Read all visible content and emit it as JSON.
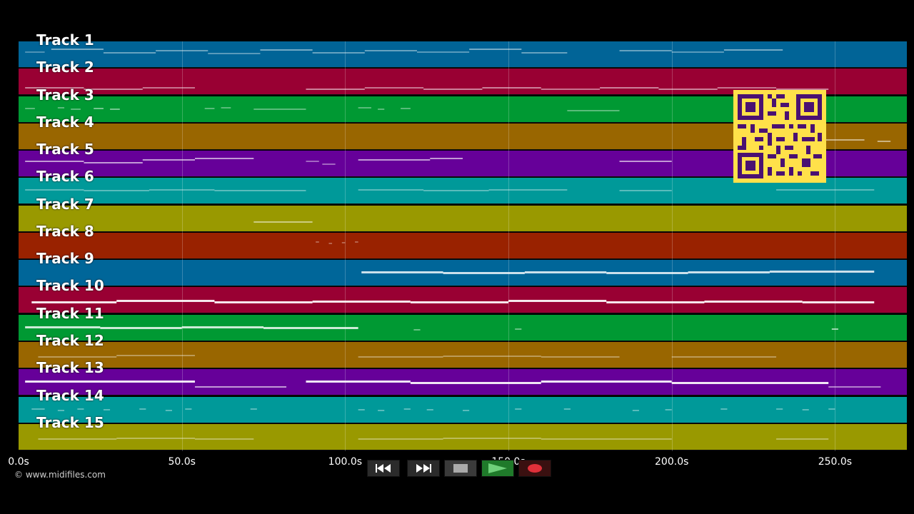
{
  "tracks": [
    {
      "label": "Track 1",
      "color": "#016497",
      "notes": [
        [
          2,
          8,
          14,
          0.3
        ],
        [
          10,
          26,
          10,
          0.45
        ],
        [
          26,
          42,
          15,
          0.4
        ],
        [
          42,
          58,
          12,
          0.4
        ],
        [
          58,
          74,
          16,
          0.35
        ],
        [
          74,
          90,
          11,
          0.45
        ],
        [
          90,
          106,
          15,
          0.4
        ],
        [
          106,
          122,
          12,
          0.4
        ],
        [
          122,
          138,
          14,
          0.35
        ],
        [
          138,
          154,
          10,
          0.45
        ],
        [
          154,
          168,
          15,
          0.4
        ],
        [
          184,
          200,
          12,
          0.4
        ],
        [
          200,
          216,
          14,
          0.35
        ],
        [
          216,
          234,
          11,
          0.45
        ]
      ]
    },
    {
      "label": "Track 2",
      "color": "#990033",
      "notes": [
        [
          2,
          20,
          26,
          0.5
        ],
        [
          20,
          38,
          28,
          0.5
        ],
        [
          38,
          54,
          26,
          0.45
        ],
        [
          88,
          106,
          28,
          0.5
        ],
        [
          106,
          124,
          26,
          0.45
        ],
        [
          124,
          142,
          28,
          0.5
        ],
        [
          142,
          160,
          26,
          0.5
        ],
        [
          160,
          178,
          28,
          0.45
        ],
        [
          178,
          196,
          26,
          0.5
        ],
        [
          196,
          214,
          28,
          0.5
        ],
        [
          214,
          232,
          26,
          0.45
        ],
        [
          232,
          248,
          28,
          0.5
        ]
      ]
    },
    {
      "label": "Track 3",
      "color": "#009933",
      "notes": [
        [
          2,
          5,
          16,
          0.35
        ],
        [
          12,
          14,
          15,
          0.35
        ],
        [
          16,
          19,
          17,
          0.35
        ],
        [
          23,
          26,
          16,
          0.45
        ],
        [
          28,
          31,
          17,
          0.45
        ],
        [
          57,
          60,
          16,
          0.35
        ],
        [
          62,
          65,
          15,
          0.35
        ],
        [
          72,
          88,
          17,
          0.35
        ],
        [
          104,
          108,
          15,
          0.35
        ],
        [
          110,
          112,
          17,
          0.35
        ],
        [
          117,
          120,
          16,
          0.35
        ],
        [
          168,
          184,
          19,
          0.35
        ]
      ]
    },
    {
      "label": "Track 4",
      "color": "#996600",
      "notes": [
        [
          247,
          259,
          22,
          0.5
        ],
        [
          263,
          267,
          24,
          0.5
        ]
      ]
    },
    {
      "label": "Track 5",
      "color": "#660099",
      "notes": [
        [
          2,
          20,
          14,
          0.6
        ],
        [
          20,
          38,
          16,
          0.6
        ],
        [
          38,
          54,
          12,
          0.6
        ],
        [
          54,
          72,
          10,
          0.6
        ],
        [
          88,
          92,
          14,
          0.4
        ],
        [
          93,
          97,
          18,
          0.4
        ],
        [
          104,
          126,
          12,
          0.6
        ],
        [
          126,
          136,
          10,
          0.6
        ],
        [
          184,
          200,
          14,
          0.6
        ]
      ]
    },
    {
      "label": "Track 6",
      "color": "#009999",
      "notes": [
        [
          2,
          20,
          16,
          0.35
        ],
        [
          20,
          40,
          17,
          0.35
        ],
        [
          40,
          60,
          16,
          0.35
        ],
        [
          60,
          88,
          17,
          0.35
        ],
        [
          104,
          124,
          16,
          0.35
        ],
        [
          124,
          144,
          17,
          0.35
        ],
        [
          144,
          168,
          16,
          0.35
        ],
        [
          184,
          200,
          17,
          0.35
        ],
        [
          232,
          262,
          16,
          0.35
        ]
      ]
    },
    {
      "label": "Track 7",
      "color": "#999900",
      "notes": [
        [
          72,
          90,
          22,
          0.5
        ]
      ]
    },
    {
      "label": "Track 8",
      "color": "#992200",
      "notes": [
        [
          91,
          92,
          12,
          0.3
        ],
        [
          95,
          96,
          14,
          0.3
        ],
        [
          99,
          100,
          13,
          0.3
        ],
        [
          103,
          104,
          12,
          0.3
        ]
      ]
    },
    {
      "label": "Track 9",
      "color": "#006699",
      "notes": [
        [
          105,
          130,
          16,
          0.8
        ],
        [
          130,
          155,
          17,
          0.8
        ],
        [
          155,
          180,
          16,
          0.8
        ],
        [
          180,
          205,
          17,
          0.8
        ],
        [
          205,
          230,
          16,
          0.8
        ],
        [
          230,
          262,
          15,
          0.8
        ]
      ]
    },
    {
      "label": "Track 10",
      "color": "#990033",
      "notes": [
        [
          4,
          30,
          20,
          0.9
        ],
        [
          30,
          60,
          18,
          0.9
        ],
        [
          60,
          90,
          20,
          0.9
        ],
        [
          90,
          120,
          19,
          0.9
        ],
        [
          120,
          150,
          20,
          0.9
        ],
        [
          150,
          180,
          18,
          0.9
        ],
        [
          180,
          210,
          20,
          0.9
        ],
        [
          210,
          240,
          19,
          0.9
        ],
        [
          240,
          262,
          20,
          0.9
        ]
      ]
    },
    {
      "label": "Track 11",
      "color": "#009933",
      "notes": [
        [
          2,
          25,
          16,
          0.8
        ],
        [
          25,
          50,
          17,
          0.8
        ],
        [
          50,
          75,
          16,
          0.8
        ],
        [
          75,
          104,
          17,
          0.8
        ],
        [
          121,
          123,
          20,
          0.4
        ],
        [
          152,
          154,
          19,
          0.4
        ],
        [
          249,
          251,
          19,
          0.6
        ]
      ]
    },
    {
      "label": "Track 12",
      "color": "#996600",
      "notes": [
        [
          6,
          30,
          20,
          0.35
        ],
        [
          30,
          54,
          18,
          0.35
        ],
        [
          104,
          130,
          20,
          0.35
        ],
        [
          130,
          160,
          19,
          0.35
        ],
        [
          160,
          184,
          20,
          0.35
        ],
        [
          200,
          232,
          20,
          0.35
        ]
      ]
    },
    {
      "label": "Track 13",
      "color": "#660099",
      "notes": [
        [
          2,
          54,
          16,
          0.9
        ],
        [
          54,
          82,
          24,
          0.6
        ],
        [
          88,
          120,
          16,
          0.9
        ],
        [
          120,
          160,
          18,
          0.9
        ],
        [
          160,
          200,
          16,
          0.9
        ],
        [
          200,
          248,
          18,
          0.9
        ],
        [
          248,
          264,
          24,
          0.5
        ]
      ]
    },
    {
      "label": "Track 14",
      "color": "#009999",
      "notes": [
        [
          4,
          8,
          16,
          0.35
        ],
        [
          12,
          14,
          18,
          0.35
        ],
        [
          18,
          20,
          16,
          0.35
        ],
        [
          26,
          28,
          17,
          0.35
        ],
        [
          37,
          39,
          16,
          0.35
        ],
        [
          45,
          47,
          18,
          0.35
        ],
        [
          51,
          53,
          16,
          0.35
        ],
        [
          71,
          73,
          16,
          0.35
        ],
        [
          104,
          106,
          17,
          0.35
        ],
        [
          110,
          112,
          18,
          0.35
        ],
        [
          118,
          120,
          16,
          0.35
        ],
        [
          125,
          127,
          17,
          0.35
        ],
        [
          136,
          138,
          18,
          0.35
        ],
        [
          152,
          154,
          16,
          0.35
        ],
        [
          167,
          169,
          16,
          0.35
        ],
        [
          188,
          190,
          18,
          0.35
        ],
        [
          198,
          200,
          17,
          0.35
        ],
        [
          215,
          217,
          16,
          0.35
        ],
        [
          232,
          234,
          16,
          0.35
        ],
        [
          240,
          242,
          17,
          0.35
        ],
        [
          248,
          250,
          16,
          0.35
        ]
      ]
    },
    {
      "label": "Track 15",
      "color": "#999900",
      "notes": [
        [
          6,
          30,
          20,
          0.35
        ],
        [
          30,
          54,
          19,
          0.35
        ],
        [
          54,
          72,
          20,
          0.35
        ],
        [
          104,
          130,
          20,
          0.35
        ],
        [
          130,
          160,
          19,
          0.35
        ],
        [
          160,
          200,
          20,
          0.35
        ],
        [
          232,
          248,
          20,
          0.35
        ]
      ]
    }
  ],
  "time_axis": {
    "max_seconds": 272,
    "ticks": [
      0,
      50,
      100,
      150,
      200,
      250
    ],
    "tick_labels": [
      "0.0s",
      "50.0s",
      "100.0s",
      "150.0s",
      "200.0s",
      "250.0s"
    ]
  },
  "copyright": "© www.midifiles.com",
  "transport": {
    "rewind_icon": "rewind-icon",
    "fast_forward_icon": "fast-forward-icon",
    "stop_icon": "stop-icon",
    "play_icon": "play-icon",
    "record_icon": "record-icon"
  },
  "qr_code": "qr-code"
}
